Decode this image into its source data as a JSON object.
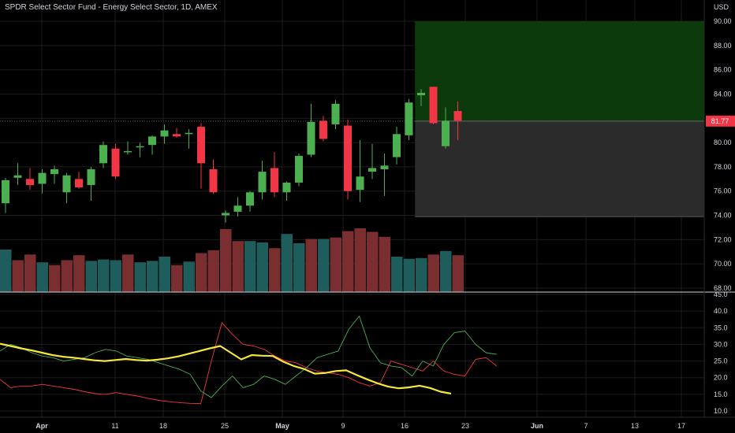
{
  "header": {
    "title": "SPDR Select Sector Fund - Energy Select Sector, 1D, AMEX",
    "currency": "USD"
  },
  "colors": {
    "background": "#000000",
    "up": "#4caf50",
    "down": "#f23645",
    "volume_up": "#1f5c5c",
    "volume_down": "#7a2e30",
    "profit_zone": "#0c3a0c",
    "loss_zone": "#2b2b2b",
    "adx_line": "#f5e63a",
    "di_plus": "#4caf50",
    "di_minus": "#f23645",
    "axis_text": "#d1d4dc"
  },
  "price_axis": {
    "ticks": [
      "90.00",
      "88.00",
      "86.00",
      "84.00",
      "82.00",
      "80.00",
      "78.00",
      "76.00",
      "74.00",
      "72.00",
      "70.00",
      "68.00"
    ],
    "current_price": "81.77"
  },
  "indicator_axis": {
    "ticks": [
      "45.0",
      "40.0",
      "35.0",
      "30.0",
      "25.0",
      "20.0",
      "15.0",
      "10.0"
    ]
  },
  "time_axis": {
    "labels": [
      "Apr",
      "11",
      "18",
      "25",
      "May",
      "9",
      "16",
      "23",
      "Jun",
      "7",
      "13",
      "17"
    ]
  },
  "chart_data": [
    {
      "type": "candlestick",
      "series": [
        {
          "name": "",
          "ohlc": [
            [
              75.0,
              77.1,
              74.2,
              76.9
            ],
            [
              77.1,
              78.3,
              76.5,
              77.3
            ],
            [
              77.0,
              77.9,
              76.1,
              76.5
            ],
            [
              76.6,
              77.8,
              75.8,
              77.5
            ],
            [
              77.4,
              78.1,
              76.6,
              77.8
            ],
            [
              75.9,
              77.5,
              75.0,
              77.3
            ],
            [
              77.0,
              77.6,
              76.2,
              76.3
            ],
            [
              76.5,
              78.0,
              75.2,
              77.8
            ],
            [
              78.3,
              80.1,
              77.9,
              79.8
            ],
            [
              79.5,
              79.9,
              77.0,
              77.2
            ],
            [
              79.3,
              80.1,
              79.0,
              79.3
            ],
            [
              79.6,
              80.0,
              78.8,
              79.7
            ],
            [
              79.8,
              80.6,
              79.0,
              80.5
            ],
            [
              80.5,
              81.5,
              79.9,
              81.0
            ],
            [
              80.7,
              81.2,
              80.4,
              80.5
            ],
            [
              80.7,
              81.1,
              79.5,
              80.8
            ],
            [
              81.3,
              81.6,
              76.2,
              78.3
            ],
            [
              77.8,
              78.6,
              75.8,
              75.9
            ],
            [
              74.0,
              74.4,
              73.4,
              74.2
            ],
            [
              74.3,
              75.5,
              73.9,
              74.8
            ],
            [
              74.8,
              76.0,
              74.3,
              75.9
            ],
            [
              75.9,
              78.5,
              75.3,
              77.6
            ],
            [
              77.9,
              79.2,
              75.5,
              75.9
            ],
            [
              75.9,
              76.8,
              75.2,
              76.7
            ],
            [
              76.7,
              79.1,
              76.4,
              78.9
            ],
            [
              79.0,
              83.2,
              78.8,
              81.7
            ],
            [
              81.8,
              82.2,
              80.1,
              80.3
            ],
            [
              81.5,
              83.5,
              81.1,
              83.2
            ],
            [
              81.4,
              81.9,
              75.3,
              76.0
            ],
            [
              76.1,
              80.2,
              75.1,
              77.2
            ],
            [
              77.6,
              79.9,
              77.0,
              77.9
            ],
            [
              77.8,
              79.1,
              75.6,
              78.1
            ],
            [
              78.8,
              81.3,
              78.2,
              80.7
            ],
            [
              80.6,
              83.6,
              80.2,
              83.3
            ],
            [
              83.9,
              84.4,
              83.0,
              84.1
            ],
            [
              84.6,
              84.6,
              81.5,
              81.6
            ],
            [
              79.7,
              82.9,
              79.5,
              81.8
            ],
            [
              82.6,
              83.4,
              80.2,
              81.8
            ]
          ]
        }
      ],
      "volume": [
        {
          "dir": "up",
          "h": 0.6
        },
        {
          "dir": "down",
          "h": 0.45
        },
        {
          "dir": "down",
          "h": 0.53
        },
        {
          "dir": "up",
          "h": 0.42
        },
        {
          "dir": "down",
          "h": 0.38
        },
        {
          "dir": "down",
          "h": 0.45
        },
        {
          "dir": "down",
          "h": 0.52
        },
        {
          "dir": "up",
          "h": 0.44
        },
        {
          "dir": "up",
          "h": 0.46
        },
        {
          "dir": "up",
          "h": 0.45
        },
        {
          "dir": "down",
          "h": 0.53
        },
        {
          "dir": "up",
          "h": 0.42
        },
        {
          "dir": "up",
          "h": 0.44
        },
        {
          "dir": "up",
          "h": 0.5
        },
        {
          "dir": "down",
          "h": 0.38
        },
        {
          "dir": "up",
          "h": 0.43
        },
        {
          "dir": "down",
          "h": 0.55
        },
        {
          "dir": "down",
          "h": 0.59
        },
        {
          "dir": "down",
          "h": 0.89
        },
        {
          "dir": "down",
          "h": 0.72
        },
        {
          "dir": "up",
          "h": 0.72
        },
        {
          "dir": "up",
          "h": 0.7
        },
        {
          "dir": "down",
          "h": 0.62
        },
        {
          "dir": "up",
          "h": 0.82
        },
        {
          "dir": "up",
          "h": 0.69
        },
        {
          "dir": "down",
          "h": 0.75
        },
        {
          "dir": "up",
          "h": 0.75
        },
        {
          "dir": "down",
          "h": 0.77
        },
        {
          "dir": "down",
          "h": 0.86
        },
        {
          "dir": "down",
          "h": 0.9
        },
        {
          "dir": "down",
          "h": 0.85
        },
        {
          "dir": "down",
          "h": 0.78
        },
        {
          "dir": "up",
          "h": 0.5
        },
        {
          "dir": "up",
          "h": 0.47
        },
        {
          "dir": "up",
          "h": 0.48
        },
        {
          "dir": "down",
          "h": 0.53
        },
        {
          "dir": "up",
          "h": 0.58
        },
        {
          "dir": "down",
          "h": 0.52
        }
      ],
      "risk_reward": {
        "entry": 81.77,
        "target": 90.0,
        "stop": 73.9,
        "start_bar": 33.5
      }
    },
    {
      "type": "line",
      "series": [
        {
          "name": "",
          "key": "adx",
          "values": [
            30.2,
            29.5,
            28.8,
            28.2,
            27.5,
            26.8,
            26.3,
            26.0,
            25.6,
            25.2,
            25.0,
            25.3,
            25.6,
            25.3,
            25.1,
            25.4,
            25.8,
            26.4,
            27.2,
            28.0,
            28.8,
            29.5,
            27.5,
            25.5,
            26.8,
            26.6,
            26.5,
            24.8,
            23.5,
            22.6,
            21.2,
            21.4,
            22.0,
            22.2,
            20.8,
            19.5,
            18.3,
            17.3,
            16.8,
            17.1,
            17.6,
            16.9,
            15.8,
            15.2
          ]
        },
        {
          "name": "",
          "key": "di_plus",
          "values": [
            28.0,
            30.0,
            29.0,
            27.5,
            26.5,
            26.0,
            25.0,
            25.5,
            26.0,
            27.5,
            28.5,
            28.0,
            26.5,
            26.0,
            25.5,
            24.5,
            23.5,
            22.5,
            21.0,
            16.0,
            14.0,
            17.5,
            20.5,
            17.0,
            18.0,
            20.5,
            19.5,
            18.0,
            20.5,
            23.0,
            26.0,
            27.0,
            28.0,
            34.5,
            38.5,
            29.0,
            24.5,
            23.5,
            23.0,
            20.5,
            25.0,
            23.5,
            30.0,
            33.5,
            34.0,
            30.0,
            27.5,
            27.0
          ]
        },
        {
          "name": "",
          "key": "di_minus",
          "values": [
            19.5,
            17.0,
            17.5,
            17.5,
            18.0,
            17.5,
            17.0,
            16.5,
            15.8,
            15.2,
            15.0,
            15.5,
            15.0,
            14.5,
            13.8,
            13.2,
            12.8,
            12.5,
            12.3,
            12.2,
            25.0,
            36.5,
            33.0,
            30.0,
            29.5,
            28.5,
            26.5,
            25.0,
            24.5,
            23.0,
            22.0,
            21.5,
            21.0,
            20.0,
            18.5,
            17.5,
            18.5,
            25.0,
            24.0,
            23.0,
            22.0,
            25.0,
            22.0,
            21.0,
            20.5,
            25.5,
            26.0,
            23.5
          ]
        }
      ]
    }
  ]
}
